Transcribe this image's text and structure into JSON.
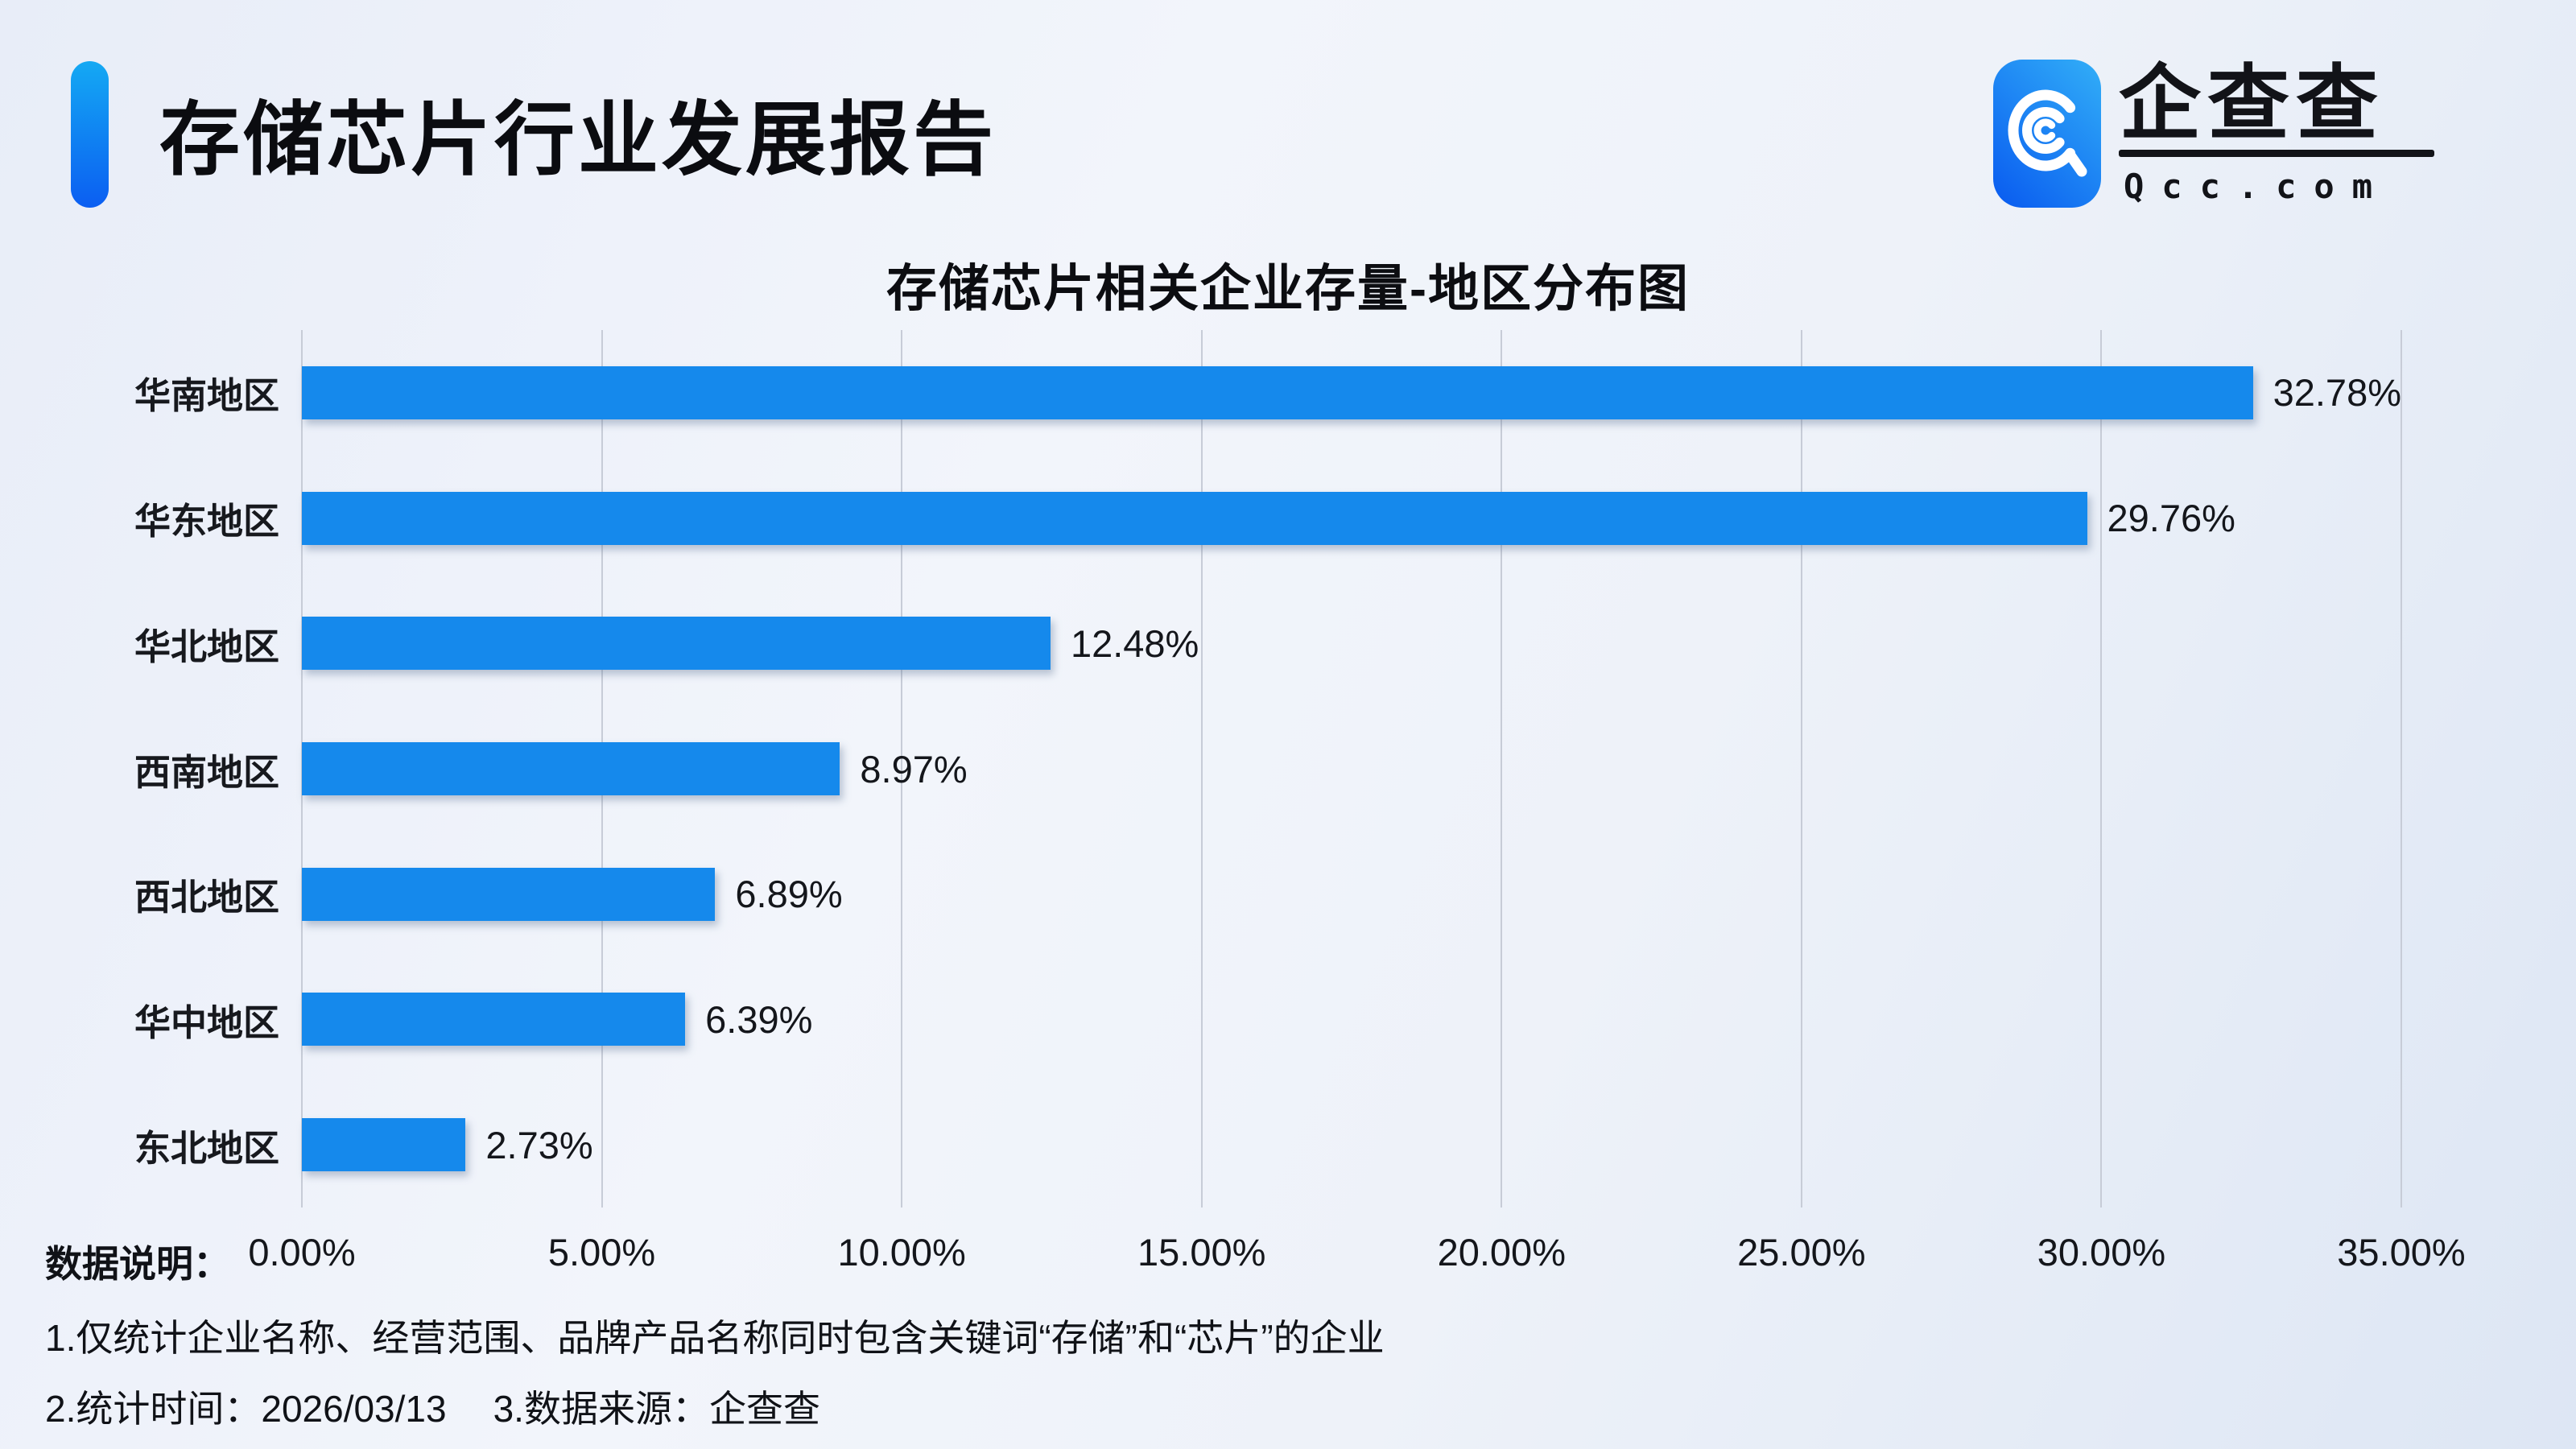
{
  "header": {
    "title": "存储芯片行业发展报告",
    "logo": {
      "icon": "qcc-magnifier-icon",
      "brand_cn": "企查查",
      "brand_en": "Qcc.com",
      "icon_gradient_top": "#2FA9F7",
      "icon_gradient_bottom": "#0B5FF0"
    }
  },
  "chart_data": {
    "type": "bar",
    "orientation": "horizontal",
    "title": "存储芯片相关企业存量-地区分布图",
    "categories": [
      "华南地区",
      "华东地区",
      "华北地区",
      "西南地区",
      "西北地区",
      "华中地区",
      "东北地区"
    ],
    "values": [
      32.78,
      29.76,
      12.48,
      8.97,
      6.89,
      6.39,
      2.73
    ],
    "value_labels": [
      "32.78%",
      "29.76%",
      "12.48%",
      "8.97%",
      "6.89%",
      "6.39%",
      "2.73%"
    ],
    "x_ticks": [
      "0.00%",
      "5.00%",
      "10.00%",
      "15.00%",
      "20.00%",
      "25.00%",
      "30.00%",
      "35.00%"
    ],
    "x_tick_values": [
      0,
      5,
      10,
      15,
      20,
      25,
      30,
      35
    ],
    "xlim": [
      0,
      35
    ],
    "xlabel": "",
    "ylabel": "",
    "bar_color": "#1589EC",
    "grid": true,
    "legend_position": "none"
  },
  "footer": {
    "heading": "数据说明：",
    "note1": "1.仅统计企业名称、经营范围、品牌产品名称同时包含关键词“存储”和“芯片”的企业",
    "note2_time": "2.统计时间：2026/03/13",
    "note2_source": "3.数据来源：企查查"
  },
  "colors": {
    "background": "#ECF1F9",
    "accent_gradient_top": "#14A9F3",
    "accent_gradient_bottom": "#0B5EF2",
    "gridline": "#C7CCD7",
    "text": "#14161B"
  }
}
